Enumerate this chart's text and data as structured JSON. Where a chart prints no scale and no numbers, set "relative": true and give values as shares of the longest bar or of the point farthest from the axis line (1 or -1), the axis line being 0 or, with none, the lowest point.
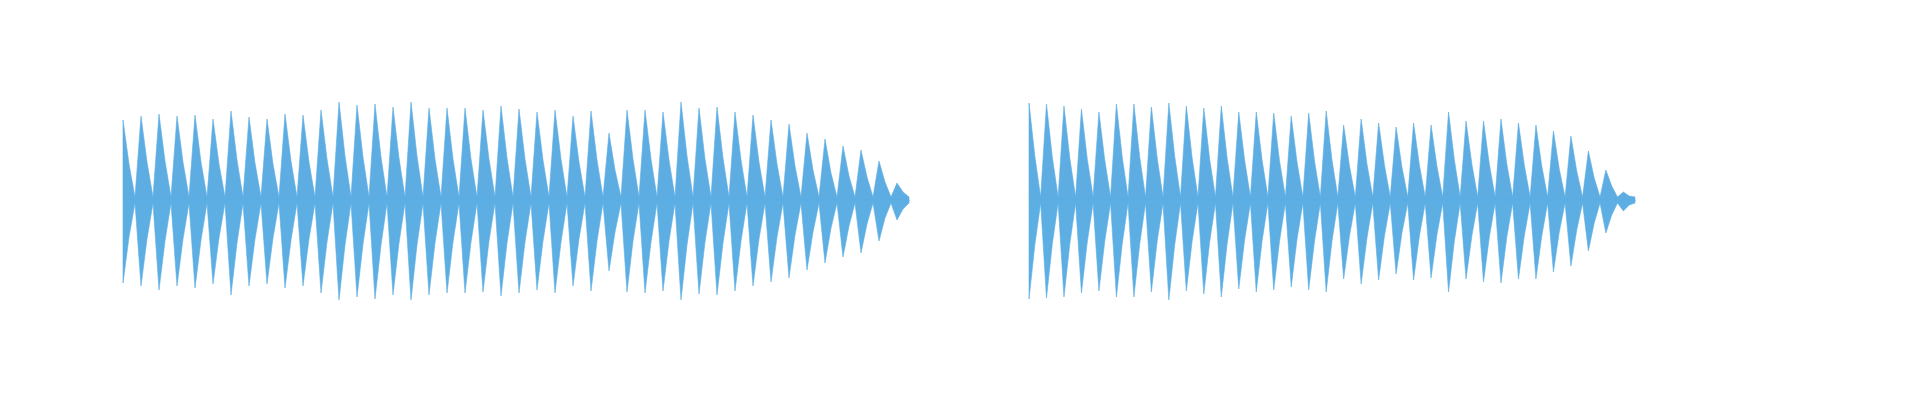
{
  "chart_data": [
    {
      "type": "area",
      "relative": true,
      "categories": [
        null,
        null,
        null,
        null,
        null,
        null,
        null,
        null,
        null,
        null,
        null,
        null,
        null,
        null,
        null,
        null,
        null,
        null,
        null,
        null,
        null,
        null,
        null,
        null,
        null,
        null,
        null,
        null,
        null,
        null,
        null,
        null,
        null,
        null,
        null,
        null,
        null,
        null,
        null,
        null,
        null,
        null,
        null,
        null,
        null,
        null,
        null,
        null,
        null,
        null,
        null,
        null,
        null,
        null,
        null,
        null,
        null,
        null,
        null,
        null,
        null,
        null,
        null,
        null,
        null,
        null,
        null,
        null,
        null,
        null,
        null,
        null,
        null,
        null,
        null,
        null,
        null,
        null,
        null,
        null,
        null,
        null,
        null,
        null,
        null,
        null,
        null,
        null,
        null,
        null,
        null,
        null,
        null,
        null,
        null,
        null,
        null,
        null,
        null,
        null,
        null,
        null,
        null,
        null,
        null,
        null,
        null,
        null,
        null,
        null,
        null,
        null,
        null,
        null,
        null,
        null,
        null,
        null,
        null,
        null,
        null,
        null,
        null,
        null,
        null,
        null,
        null,
        null,
        null,
        null,
        null,
        null
      ],
      "series": [
        {
          "color": "#5dade2",
          "values": [
            0.8,
            0.36,
            0.03,
            0.84,
            0.38,
            0.03,
            0.86,
            0.39,
            0.03,
            0.84,
            0.38,
            0.03,
            0.85,
            0.38,
            0.03,
            0.81,
            0.36,
            0.03,
            0.89,
            0.4,
            0.03,
            0.83,
            0.37,
            0.03,
            0.81,
            0.36,
            0.03,
            0.86,
            0.39,
            0.03,
            0.85,
            0.38,
            0.03,
            0.9,
            0.41,
            0.03,
            0.98,
            0.44,
            0.03,
            0.95,
            0.43,
            0.03,
            0.96,
            0.43,
            0.03,
            0.93,
            0.42,
            0.03,
            0.98,
            0.44,
            0.03,
            0.92,
            0.41,
            0.03,
            0.92,
            0.41,
            0.03,
            0.92,
            0.41,
            0.03,
            0.9,
            0.41,
            0.03,
            0.94,
            0.42,
            0.03,
            0.91,
            0.41,
            0.03,
            0.88,
            0.4,
            0.03,
            0.9,
            0.41,
            0.03,
            0.84,
            0.38,
            0.03,
            0.89,
            0.4,
            0.03,
            0.67,
            0.3,
            0.03,
            0.9,
            0.41,
            0.03,
            0.9,
            0.41,
            0.03,
            0.88,
            0.4,
            0.03,
            0.98,
            0.44,
            0.03,
            0.92,
            0.41,
            0.03,
            0.93,
            0.42,
            0.03,
            0.88,
            0.4,
            0.03,
            0.85,
            0.38,
            0.03,
            0.8,
            0.36,
            0.03,
            0.76,
            0.34,
            0.03,
            0.67,
            0.3,
            0.03,
            0.61,
            0.27,
            0.03,
            0.54,
            0.24,
            0.03,
            0.5,
            0.23,
            0.03,
            0.39,
            0.18,
            0.03,
            0.17,
            0.08,
            0.03
          ]
        },
        {
          "color": "#5caee3",
          "values": [
            -0.83,
            -0.37,
            -0.03,
            -0.86,
            -0.39,
            -0.03,
            -0.9,
            -0.41,
            -0.03,
            -0.86,
            -0.39,
            -0.03,
            -0.88,
            -0.4,
            -0.03,
            -0.84,
            -0.38,
            -0.03,
            -0.95,
            -0.43,
            -0.03,
            -0.86,
            -0.39,
            -0.03,
            -0.84,
            -0.38,
            -0.03,
            -0.88,
            -0.4,
            -0.03,
            -0.86,
            -0.39,
            -0.03,
            -0.93,
            -0.42,
            -0.03,
            -1,
            -0.45,
            -0.03,
            -0.97,
            -0.44,
            -0.03,
            -0.99,
            -0.45,
            -0.03,
            -0.95,
            -0.43,
            -0.03,
            -1,
            -0.45,
            -0.03,
            -0.95,
            -0.43,
            -0.03,
            -0.93,
            -0.42,
            -0.03,
            -0.93,
            -0.42,
            -0.03,
            -0.92,
            -0.41,
            -0.03,
            -0.96,
            -0.43,
            -0.03,
            -0.93,
            -0.42,
            -0.03,
            -0.9,
            -0.41,
            -0.03,
            -0.93,
            -0.42,
            -0.03,
            -0.86,
            -0.39,
            -0.03,
            -0.91,
            -0.41,
            -0.03,
            -0.71,
            -0.32,
            -0.03,
            -0.92,
            -0.41,
            -0.03,
            -0.93,
            -0.42,
            -0.03,
            -0.91,
            -0.41,
            -0.03,
            -1,
            -0.45,
            -0.03,
            -0.94,
            -0.42,
            -0.03,
            -0.95,
            -0.43,
            -0.03,
            -0.91,
            -0.41,
            -0.03,
            -0.86,
            -0.39,
            -0.03,
            -0.82,
            -0.37,
            -0.03,
            -0.78,
            -0.35,
            -0.03,
            -0.7,
            -0.32,
            -0.03,
            -0.63,
            -0.28,
            -0.03,
            -0.57,
            -0.26,
            -0.03,
            -0.53,
            -0.24,
            -0.03,
            -0.41,
            -0.18,
            -0.03,
            -0.2,
            -0.09,
            -0.03
          ]
        }
      ]
    },
    {
      "type": "area",
      "relative": true,
      "categories": [
        null,
        null,
        null,
        null,
        null,
        null,
        null,
        null,
        null,
        null,
        null,
        null,
        null,
        null,
        null,
        null,
        null,
        null,
        null,
        null,
        null,
        null,
        null,
        null,
        null,
        null,
        null,
        null,
        null,
        null,
        null,
        null,
        null,
        null,
        null,
        null,
        null,
        null,
        null,
        null,
        null,
        null,
        null,
        null,
        null,
        null,
        null,
        null,
        null,
        null,
        null,
        null,
        null,
        null,
        null,
        null,
        null,
        null,
        null,
        null,
        null,
        null,
        null,
        null,
        null,
        null,
        null,
        null,
        null,
        null,
        null,
        null,
        null,
        null,
        null,
        null,
        null,
        null,
        null,
        null,
        null,
        null,
        null,
        null,
        null,
        null,
        null,
        null,
        null,
        null,
        null,
        null,
        null,
        null,
        null,
        null,
        null,
        null,
        null,
        null,
        null,
        null,
        null,
        null,
        null
      ],
      "series": [
        {
          "color": "#5dade2",
          "values": [
            0.97,
            0.44,
            0.03,
            0.96,
            0.43,
            0.03,
            0.94,
            0.42,
            0.03,
            0.91,
            0.41,
            0.03,
            0.88,
            0.4,
            0.03,
            0.96,
            0.43,
            0.03,
            0.96,
            0.43,
            0.03,
            0.93,
            0.42,
            0.03,
            0.97,
            0.44,
            0.03,
            0.94,
            0.42,
            0.03,
            0.92,
            0.41,
            0.03,
            0.94,
            0.42,
            0.03,
            0.88,
            0.4,
            0.03,
            0.88,
            0.4,
            0.03,
            0.87,
            0.39,
            0.03,
            0.84,
            0.38,
            0.03,
            0.87,
            0.39,
            0.03,
            0.89,
            0.4,
            0.03,
            0.75,
            0.34,
            0.03,
            0.81,
            0.36,
            0.03,
            0.77,
            0.35,
            0.03,
            0.73,
            0.33,
            0.03,
            0.77,
            0.35,
            0.03,
            0.75,
            0.34,
            0.03,
            0.88,
            0.4,
            0.03,
            0.79,
            0.36,
            0.03,
            0.79,
            0.36,
            0.03,
            0.81,
            0.36,
            0.03,
            0.77,
            0.35,
            0.03,
            0.75,
            0.34,
            0.03,
            0.69,
            0.31,
            0.03,
            0.64,
            0.29,
            0.03,
            0.49,
            0.22,
            0.03,
            0.3,
            0.14,
            0.03,
            0.08,
            0.04,
            0.03
          ]
        },
        {
          "color": "#5caee3",
          "values": [
            -0.99,
            -0.45,
            -0.03,
            -0.98,
            -0.44,
            -0.03,
            -0.97,
            -0.44,
            -0.03,
            -0.93,
            -0.42,
            -0.03,
            -0.91,
            -0.41,
            -0.03,
            -0.97,
            -0.44,
            -0.03,
            -0.97,
            -0.44,
            -0.03,
            -0.92,
            -0.41,
            -0.03,
            -1,
            -0.45,
            -0.03,
            -0.91,
            -0.41,
            -0.03,
            -0.94,
            -0.42,
            -0.03,
            -0.97,
            -0.44,
            -0.03,
            -0.89,
            -0.4,
            -0.03,
            -0.92,
            -0.41,
            -0.03,
            -0.9,
            -0.41,
            -0.03,
            -0.87,
            -0.39,
            -0.03,
            -0.9,
            -0.41,
            -0.03,
            -0.92,
            -0.41,
            -0.03,
            -0.79,
            -0.36,
            -0.03,
            -0.84,
            -0.38,
            -0.03,
            -0.8,
            -0.36,
            -0.03,
            -0.74,
            -0.33,
            -0.03,
            -0.8,
            -0.36,
            -0.03,
            -0.78,
            -0.35,
            -0.03,
            -0.92,
            -0.41,
            -0.03,
            -0.79,
            -0.36,
            -0.03,
            -0.82,
            -0.37,
            -0.03,
            -0.83,
            -0.37,
            -0.03,
            -0.79,
            -0.36,
            -0.03,
            -0.79,
            -0.36,
            -0.03,
            -0.72,
            -0.32,
            -0.03,
            -0.66,
            -0.3,
            -0.03,
            -0.51,
            -0.23,
            -0.03,
            -0.33,
            -0.15,
            -0.03,
            -0.11,
            -0.05,
            -0.03
          ]
        }
      ]
    }
  ]
}
